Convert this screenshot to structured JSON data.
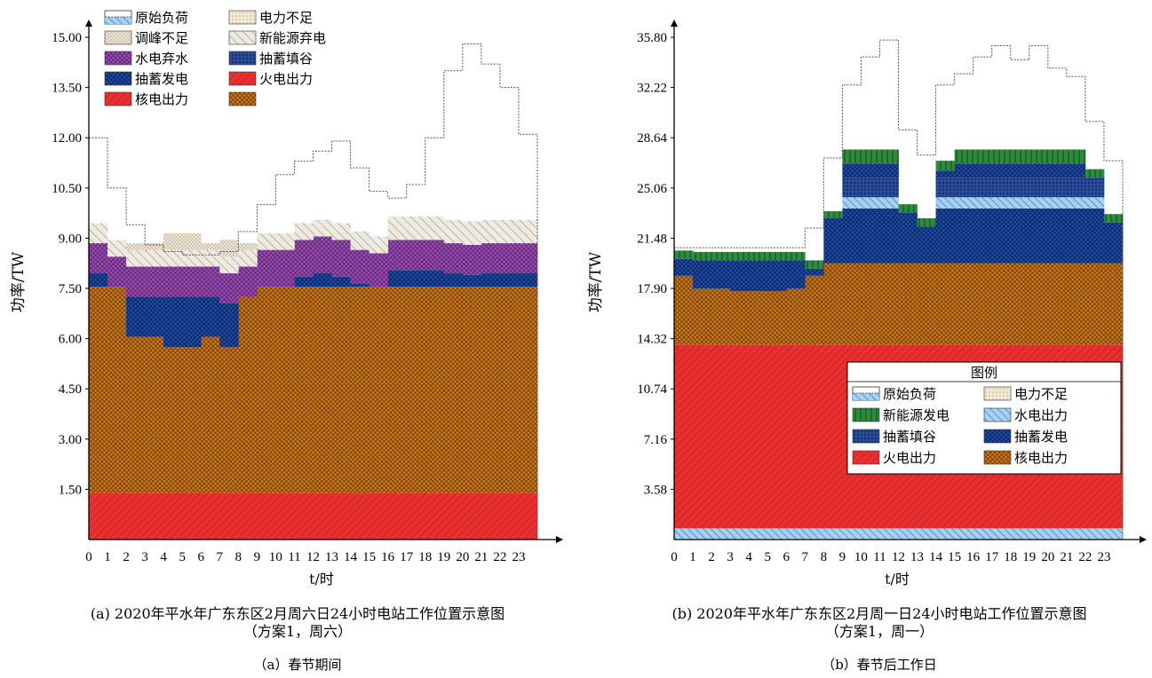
{
  "captions": {
    "a_line1": "(a) 2020年平水年广东东区2月周六日24小时电站工作位置示意图",
    "a_line2": "（方案1，周六）",
    "b_line1": "(b) 2020年平水年广东东区2月周一日24小时电站工作位置示意图",
    "b_line2": "（方案1，周一）",
    "sub_a": "（a）春节期间",
    "sub_b": "（b）春节后工作日"
  },
  "colors": {
    "原始负荷": "#ffffff",
    "电力不足": "#e8dcc8",
    "调峰不足": "#e0d8c8",
    "新能源弃电": "#ddd8cc",
    "水电弃水": "#9b4fb0",
    "抽蓄填谷": "#2a4a9a",
    "抽蓄发电": "#1f4ea8",
    "火电出力": "#e83030",
    "核电出力": "#c86e10",
    "水电出力": "#80b8e8",
    "新能源发电": "#2e8b3e"
  },
  "chart_data": [
    {
      "type": "area",
      "title": "",
      "xlabel": "t/时",
      "ylabel": "功率/TW",
      "x": [
        0,
        1,
        2,
        3,
        4,
        5,
        6,
        7,
        8,
        9,
        10,
        11,
        12,
        13,
        14,
        15,
        16,
        17,
        18,
        19,
        20,
        21,
        22,
        23
      ],
      "xticks": [
        "0",
        "1",
        "2",
        "3",
        "4",
        "5",
        "6",
        "7",
        "8",
        "9",
        "10",
        "11",
        "12",
        "13",
        "14",
        "15",
        "16",
        "17",
        "18",
        "19",
        "20",
        "21",
        "22",
        "23"
      ],
      "yticks": [
        "1.50",
        "3.00",
        "4.50",
        "6.00",
        "7.50",
        "9.00",
        "10.50",
        "12.00",
        "13.50",
        "15.00"
      ],
      "ylim": [
        0,
        15.0
      ],
      "legend": {
        "placement": "top-left",
        "title": "",
        "entries": [
          "原始负荷",
          "电力不足",
          "调峰不足",
          "新能源弃电",
          "水电弃水",
          "抽蓄填谷",
          "抽蓄发电",
          "火电出力",
          "核电出力",
          ""
        ]
      },
      "series": [
        {
          "name": "火电出力",
          "values": [
            1.4,
            1.4,
            1.4,
            1.4,
            1.4,
            1.4,
            1.4,
            1.4,
            1.4,
            1.4,
            1.4,
            1.4,
            1.4,
            1.4,
            1.4,
            1.4,
            1.4,
            1.4,
            1.4,
            1.4,
            1.4,
            1.4,
            1.4,
            1.4
          ]
        },
        {
          "name": "核电出力",
          "values": [
            6.15,
            6.15,
            4.65,
            4.65,
            4.35,
            4.35,
            4.65,
            4.35,
            5.85,
            6.15,
            6.15,
            6.15,
            6.15,
            6.15,
            6.15,
            6.15,
            6.15,
            6.15,
            6.15,
            6.15,
            6.15,
            6.15,
            6.15,
            6.15
          ]
        },
        {
          "name": "抽蓄发电",
          "values": [
            0,
            0,
            1.2,
            1.2,
            1.5,
            1.5,
            1.2,
            1.3,
            0,
            0,
            0,
            0,
            0,
            0,
            0,
            0,
            0,
            0,
            0,
            0,
            0,
            0,
            0,
            0
          ]
        },
        {
          "name": "火电出力(上)",
          "values": [
            0.4,
            0,
            0,
            0,
            0,
            0,
            0,
            0,
            0,
            0,
            0,
            0.3,
            0.4,
            0.3,
            0.1,
            0,
            0.5,
            0.5,
            0.5,
            0.4,
            0.35,
            0.4,
            0.4,
            0.4
          ]
        },
        {
          "name": "水电弃水",
          "values": [
            0.9,
            0.9,
            0.9,
            0.9,
            0.9,
            0.9,
            0.9,
            0.9,
            0.9,
            1.1,
            1.1,
            1.1,
            1.1,
            1.1,
            1.0,
            1.0,
            0.9,
            0.9,
            0.9,
            0.9,
            0.9,
            0.9,
            0.9,
            0.9
          ]
        },
        {
          "name": "新能源弃电",
          "values": [
            0.6,
            0.5,
            0.5,
            0.5,
            0.5,
            0.5,
            0.5,
            0.5,
            0.5,
            0.5,
            0.5,
            0.5,
            0.5,
            0.5,
            0.55,
            0.5,
            0.7,
            0.7,
            0.7,
            0.7,
            0.7,
            0.7,
            0.7,
            0.7
          ]
        },
        {
          "name": "调峰不足",
          "values": [
            0,
            0,
            0.2,
            0.2,
            0.5,
            0.5,
            0.2,
            0.5,
            0.2,
            0,
            0,
            0,
            0,
            0,
            0,
            0,
            0,
            0,
            0,
            0,
            0,
            0,
            0,
            0
          ]
        },
        {
          "name": "原始负荷",
          "values": [
            12.0,
            10.5,
            9.4,
            8.8,
            8.6,
            8.5,
            8.5,
            8.6,
            9.2,
            10.0,
            10.9,
            11.3,
            11.6,
            11.9,
            11.1,
            10.4,
            10.2,
            10.6,
            12.0,
            14.0,
            14.8,
            14.2,
            13.5,
            12.1
          ]
        }
      ]
    },
    {
      "type": "area",
      "title": "",
      "xlabel": "t/时",
      "ylabel": "功率/TW",
      "x": [
        0,
        1,
        2,
        3,
        4,
        5,
        6,
        7,
        8,
        9,
        10,
        11,
        12,
        13,
        14,
        15,
        16,
        17,
        18,
        19,
        20,
        21,
        22,
        23
      ],
      "xticks": [
        "0",
        "1",
        "2",
        "3",
        "4",
        "5",
        "6",
        "7",
        "8",
        "9",
        "10",
        "11",
        "12",
        "13",
        "14",
        "15",
        "16",
        "17",
        "18",
        "19",
        "20",
        "21",
        "22",
        "23"
      ],
      "yticks": [
        "3.58",
        "7.16",
        "10.74",
        "14.32",
        "17.90",
        "21.48",
        "25.06",
        "28.64",
        "32.22",
        "35.80"
      ],
      "ylim": [
        0,
        35.8
      ],
      "legend": {
        "placement": "bottom-right",
        "title": "图例",
        "entries": [
          "原始负荷",
          "电力不足",
          "新能源发电",
          "水电出力",
          "抽蓄填谷",
          "抽蓄发电",
          "火电出力",
          "核电出力"
        ]
      },
      "series": [
        {
          "name": "水电出力",
          "values": [
            0.8,
            0.8,
            0.8,
            0.8,
            0.8,
            0.8,
            0.8,
            0.8,
            0.8,
            0.8,
            0.8,
            0.8,
            0.8,
            0.8,
            0.8,
            0.8,
            0.8,
            0.8,
            0.8,
            0.8,
            0.8,
            0.8,
            0.8,
            0.8
          ]
        },
        {
          "name": "火电出力",
          "values": [
            13.1,
            13.1,
            13.1,
            13.1,
            13.1,
            13.1,
            13.1,
            13.1,
            13.1,
            13.1,
            13.1,
            13.1,
            13.1,
            13.1,
            13.1,
            13.1,
            13.1,
            13.1,
            13.1,
            13.1,
            13.1,
            13.1,
            13.1,
            13.1
          ]
        },
        {
          "name": "核电出力",
          "values": [
            4.9,
            4.0,
            4.0,
            3.8,
            3.8,
            3.8,
            4.0,
            4.9,
            5.8,
            5.8,
            5.8,
            5.8,
            5.8,
            5.8,
            5.8,
            5.8,
            5.8,
            5.8,
            5.8,
            5.8,
            5.8,
            5.8,
            5.8,
            5.8
          ]
        },
        {
          "name": "火电出力(上)",
          "values": [
            0,
            0,
            0,
            0,
            0,
            0,
            0,
            0,
            3.2,
            3.9,
            3.9,
            3.9,
            3.6,
            2.6,
            3.9,
            3.9,
            3.9,
            3.9,
            3.9,
            3.9,
            3.9,
            3.9,
            3.9,
            2.9
          ]
        },
        {
          "name": "水电出力(上)",
          "values": [
            0,
            0,
            0,
            0,
            0,
            0,
            0,
            0,
            0,
            0.8,
            0.8,
            0.8,
            0,
            0,
            0.8,
            0.8,
            0.8,
            0.8,
            0.8,
            0.8,
            0.8,
            0.8,
            0.8,
            0
          ]
        },
        {
          "name": "抽蓄填谷",
          "values": [
            0,
            0,
            0,
            0,
            0,
            0,
            0,
            0,
            0,
            1.4,
            1.4,
            1.4,
            0,
            0,
            1.4,
            1.4,
            1.4,
            1.4,
            1.4,
            1.4,
            1.4,
            1.4,
            1.4,
            0
          ]
        },
        {
          "name": "抽蓄发电",
          "values": [
            1.2,
            2.0,
            2.0,
            2.2,
            2.2,
            2.2,
            2.0,
            0.5,
            0,
            1.0,
            1.0,
            1.0,
            0,
            0,
            0.5,
            1.0,
            1.0,
            1.0,
            1.0,
            1.0,
            1.0,
            1.0,
            0,
            0
          ]
        },
        {
          "name": "新能源发电",
          "values": [
            0.6,
            0.6,
            0.6,
            0.6,
            0.6,
            0.6,
            0.6,
            0.6,
            0.5,
            1.0,
            1.0,
            1.0,
            0.6,
            0.6,
            0.7,
            1.0,
            1.0,
            1.0,
            1.0,
            1.0,
            1.0,
            1.0,
            0.6,
            0.6
          ]
        },
        {
          "name": "原始负荷",
          "values": [
            20.8,
            20.8,
            20.8,
            20.8,
            20.8,
            20.8,
            20.8,
            22.2,
            27.2,
            32.4,
            34.4,
            35.6,
            29.2,
            27.4,
            32.4,
            33.2,
            34.4,
            35.2,
            34.2,
            35.2,
            33.6,
            33.0,
            29.8,
            27.0
          ]
        }
      ]
    }
  ]
}
